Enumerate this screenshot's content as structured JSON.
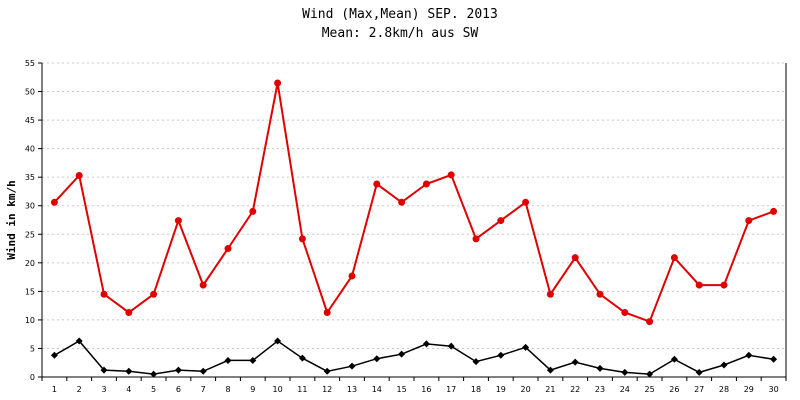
{
  "chart_data": {
    "type": "line",
    "title": "Wind (Max,Mean) SEP. 2013",
    "subtitle": "Mean: 2.8km/h aus SW",
    "ylabel": "Wind in km/h",
    "xlabel": "",
    "ylim": [
      0,
      55
    ],
    "yticks": [
      0,
      5,
      10,
      15,
      20,
      25,
      30,
      35,
      40,
      45,
      50,
      55
    ],
    "grid": true,
    "categories": [
      "1",
      "2",
      "3",
      "4",
      "5",
      "6",
      "7",
      "8",
      "9",
      "10",
      "11",
      "12",
      "13",
      "14",
      "15",
      "16",
      "17",
      "18",
      "19",
      "20",
      "21",
      "22",
      "23",
      "24",
      "25",
      "26",
      "27",
      "28",
      "29",
      "30"
    ],
    "series": [
      {
        "color": "#e00000",
        "marker": "circle",
        "values": [
          30.6,
          35.3,
          14.5,
          11.3,
          14.5,
          27.4,
          16.1,
          22.5,
          29.0,
          51.5,
          24.2,
          11.3,
          17.7,
          33.8,
          30.6,
          33.8,
          35.4,
          24.2,
          27.4,
          30.6,
          14.5,
          20.9,
          14.5,
          11.3,
          9.7,
          20.9,
          16.1,
          16.1,
          27.4,
          29.0
        ]
      },
      {
        "color": "#000000",
        "marker": "diamond",
        "values": [
          3.8,
          6.3,
          1.2,
          1.0,
          0.5,
          1.2,
          1.0,
          2.9,
          2.9,
          6.3,
          3.3,
          1.0,
          1.9,
          3.2,
          4.0,
          5.8,
          5.4,
          2.7,
          3.8,
          5.2,
          1.2,
          2.6,
          1.5,
          0.8,
          0.5,
          3.1,
          0.8,
          2.1,
          3.8,
          3.1
        ]
      }
    ]
  }
}
